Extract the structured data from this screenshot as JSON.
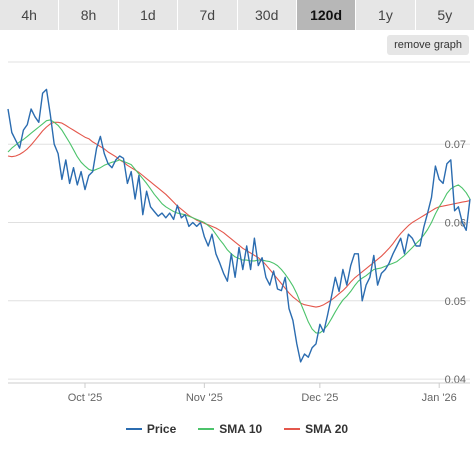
{
  "tabs": [
    {
      "label": "4h",
      "active": false
    },
    {
      "label": "8h",
      "active": false
    },
    {
      "label": "1d",
      "active": false
    },
    {
      "label": "7d",
      "active": false
    },
    {
      "label": "30d",
      "active": false
    },
    {
      "label": "120d",
      "active": true
    },
    {
      "label": "1y",
      "active": false
    },
    {
      "label": "5y",
      "active": false
    }
  ],
  "remove_graph_label": "remove graph",
  "colors": {
    "price": "#2b6cb0",
    "sma10": "#4cc36b",
    "sma20": "#e4574c"
  },
  "chart_data": {
    "type": "line",
    "title": "",
    "xlabel": "",
    "ylabel": "",
    "x_ticks": [
      "Oct '25",
      "Nov '25",
      "Dec '25",
      "Jan '26"
    ],
    "y_ticks": [
      "0.04",
      "0.05",
      "0.06",
      "0.07"
    ],
    "ylim": [
      0.0395,
      0.0805
    ],
    "xlim": [
      "2025-09-11",
      "2026-01-09"
    ],
    "grid": true,
    "legend_position": "bottom",
    "x": [
      "2025-09-11",
      "2025-09-12",
      "2025-09-13",
      "2025-09-14",
      "2025-09-15",
      "2025-09-16",
      "2025-09-17",
      "2025-09-18",
      "2025-09-19",
      "2025-09-20",
      "2025-09-21",
      "2025-09-22",
      "2025-09-23",
      "2025-09-24",
      "2025-09-25",
      "2025-09-26",
      "2025-09-27",
      "2025-09-28",
      "2025-09-29",
      "2025-09-30",
      "2025-10-01",
      "2025-10-02",
      "2025-10-03",
      "2025-10-04",
      "2025-10-05",
      "2025-10-06",
      "2025-10-07",
      "2025-10-08",
      "2025-10-09",
      "2025-10-10",
      "2025-10-11",
      "2025-10-12",
      "2025-10-13",
      "2025-10-14",
      "2025-10-15",
      "2025-10-16",
      "2025-10-17",
      "2025-10-18",
      "2025-10-19",
      "2025-10-20",
      "2025-10-21",
      "2025-10-22",
      "2025-10-23",
      "2025-10-24",
      "2025-10-25",
      "2025-10-26",
      "2025-10-27",
      "2025-10-28",
      "2025-10-29",
      "2025-10-30",
      "2025-10-31",
      "2025-11-01",
      "2025-11-02",
      "2025-11-03",
      "2025-11-04",
      "2025-11-05",
      "2025-11-06",
      "2025-11-07",
      "2025-11-08",
      "2025-11-09",
      "2025-11-10",
      "2025-11-11",
      "2025-11-12",
      "2025-11-13",
      "2025-11-14",
      "2025-11-15",
      "2025-11-16",
      "2025-11-17",
      "2025-11-18",
      "2025-11-19",
      "2025-11-20",
      "2025-11-21",
      "2025-11-22",
      "2025-11-23",
      "2025-11-24",
      "2025-11-25",
      "2025-11-26",
      "2025-11-27",
      "2025-11-28",
      "2025-11-29",
      "2025-11-30",
      "2025-12-01",
      "2025-12-02",
      "2025-12-03",
      "2025-12-04",
      "2025-12-05",
      "2025-12-06",
      "2025-12-07",
      "2025-12-08",
      "2025-12-09",
      "2025-12-10",
      "2025-12-11",
      "2025-12-12",
      "2025-12-13",
      "2025-12-14",
      "2025-12-15",
      "2025-12-16",
      "2025-12-17",
      "2025-12-18",
      "2025-12-19",
      "2025-12-20",
      "2025-12-21",
      "2025-12-22",
      "2025-12-23",
      "2025-12-24",
      "2025-12-25",
      "2025-12-26",
      "2025-12-27",
      "2025-12-28",
      "2025-12-29",
      "2025-12-30",
      "2025-12-31",
      "2026-01-01",
      "2026-01-02",
      "2026-01-03",
      "2026-01-04",
      "2026-01-05",
      "2026-01-06",
      "2026-01-07",
      "2026-01-08",
      "2026-01-09"
    ],
    "series": [
      {
        "name": "Price",
        "values": [
          0.0745,
          0.0715,
          0.0705,
          0.0695,
          0.0718,
          0.0725,
          0.0745,
          0.0735,
          0.0728,
          0.0765,
          0.077,
          0.0738,
          0.07,
          0.0688,
          0.0655,
          0.068,
          0.065,
          0.067,
          0.0648,
          0.0665,
          0.0642,
          0.066,
          0.0665,
          0.0695,
          0.071,
          0.0688,
          0.0675,
          0.067,
          0.068,
          0.0685,
          0.0682,
          0.065,
          0.0665,
          0.063,
          0.066,
          0.061,
          0.064,
          0.062,
          0.0614,
          0.0608,
          0.0612,
          0.0606,
          0.0612,
          0.0604,
          0.0622,
          0.0606,
          0.061,
          0.0595,
          0.06,
          0.0595,
          0.06,
          0.0582,
          0.057,
          0.0585,
          0.056,
          0.0548,
          0.0535,
          0.0525,
          0.056,
          0.053,
          0.0568,
          0.054,
          0.057,
          0.054,
          0.058,
          0.0545,
          0.0555,
          0.053,
          0.052,
          0.0538,
          0.0515,
          0.0513,
          0.053,
          0.049,
          0.0475,
          0.0445,
          0.0422,
          0.0432,
          0.0428,
          0.044,
          0.0445,
          0.047,
          0.046,
          0.0482,
          0.0505,
          0.053,
          0.0512,
          0.054,
          0.052,
          0.0545,
          0.056,
          0.056,
          0.05,
          0.052,
          0.053,
          0.0558,
          0.052,
          0.0535,
          0.054,
          0.0548,
          0.056,
          0.057,
          0.058,
          0.056,
          0.0585,
          0.058,
          0.057,
          0.057,
          0.0594,
          0.0612,
          0.0632,
          0.0672,
          0.0655,
          0.065,
          0.0675,
          0.068,
          0.0615,
          0.062,
          0.06,
          0.059,
          0.063
        ]
      },
      {
        "name": "SMA 10",
        "values": [
          0.069,
          0.0695,
          0.0699,
          0.0703,
          0.0706,
          0.071,
          0.0714,
          0.0718,
          0.0722,
          0.0726,
          0.073,
          0.0731,
          0.0728,
          0.0724,
          0.0718,
          0.071,
          0.0702,
          0.0693,
          0.0684,
          0.0677,
          0.0672,
          0.0668,
          0.0666,
          0.0668,
          0.067,
          0.0673,
          0.0675,
          0.0677,
          0.0678,
          0.068,
          0.0678,
          0.0676,
          0.0674,
          0.0668,
          0.0662,
          0.0656,
          0.065,
          0.0643,
          0.0636,
          0.063,
          0.0624,
          0.062,
          0.0617,
          0.0614,
          0.0612,
          0.0611,
          0.061,
          0.0608,
          0.0606,
          0.0604,
          0.0602,
          0.06,
          0.0596,
          0.0592,
          0.0585,
          0.0578,
          0.0572,
          0.0565,
          0.056,
          0.0556,
          0.0554,
          0.0552,
          0.0552,
          0.0551,
          0.0551,
          0.0552,
          0.0552,
          0.0551,
          0.055,
          0.0548,
          0.0545,
          0.054,
          0.0534,
          0.0527,
          0.0519,
          0.0509,
          0.0497,
          0.0485,
          0.0473,
          0.0464,
          0.0459,
          0.0459,
          0.0463,
          0.0469,
          0.0477,
          0.0486,
          0.0494,
          0.0501,
          0.0506,
          0.0512,
          0.0519,
          0.0525,
          0.0529,
          0.0532,
          0.0536,
          0.054,
          0.0541,
          0.0542,
          0.0544,
          0.0546,
          0.0548,
          0.055,
          0.0554,
          0.0558,
          0.0563,
          0.0568,
          0.0573,
          0.0578,
          0.0584,
          0.0591,
          0.06,
          0.0611,
          0.062,
          0.0628,
          0.0637,
          0.0643,
          0.0646,
          0.0648,
          0.0644,
          0.0638,
          0.063
        ]
      },
      {
        "name": "SMA 20",
        "values": [
          0.0685,
          0.0684,
          0.0685,
          0.0687,
          0.069,
          0.0694,
          0.0699,
          0.0705,
          0.0711,
          0.0717,
          0.0722,
          0.0726,
          0.0728,
          0.0728,
          0.0727,
          0.0724,
          0.0721,
          0.0718,
          0.0715,
          0.0712,
          0.0709,
          0.0707,
          0.0703,
          0.07,
          0.0697,
          0.0694,
          0.069,
          0.0687,
          0.0684,
          0.068,
          0.0677,
          0.0673,
          0.067,
          0.0667,
          0.0664,
          0.066,
          0.0656,
          0.0652,
          0.0648,
          0.0644,
          0.064,
          0.0636,
          0.0631,
          0.0626,
          0.0621,
          0.0617,
          0.0613,
          0.0609,
          0.0606,
          0.0603,
          0.0601,
          0.0599,
          0.0597,
          0.0595,
          0.0593,
          0.059,
          0.0587,
          0.0583,
          0.0579,
          0.0575,
          0.0571,
          0.0567,
          0.0564,
          0.0561,
          0.0558,
          0.0555,
          0.0551,
          0.0546,
          0.054,
          0.0534,
          0.0528,
          0.0522,
          0.0516,
          0.051,
          0.0505,
          0.0501,
          0.0497,
          0.0495,
          0.0494,
          0.0493,
          0.0492,
          0.0493,
          0.0495,
          0.0498,
          0.0501,
          0.0505,
          0.0509,
          0.0513,
          0.0518,
          0.0524,
          0.0529,
          0.0533,
          0.0537,
          0.0541,
          0.0545,
          0.0549,
          0.0553,
          0.0557,
          0.0562,
          0.0567,
          0.0573,
          0.058,
          0.0586,
          0.0591,
          0.0596,
          0.06,
          0.0603,
          0.0606,
          0.0609,
          0.0612,
          0.0615,
          0.0618,
          0.062,
          0.0621,
          0.0622,
          0.0623,
          0.0624,
          0.0625,
          0.0626,
          0.0627,
          0.0628
        ]
      }
    ]
  }
}
